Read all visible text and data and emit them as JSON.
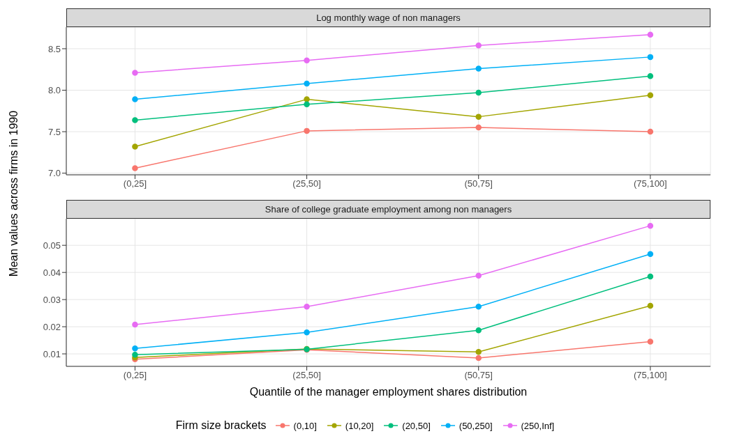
{
  "chart_data": [
    {
      "type": "line",
      "title": "Log monthly wage of non managers",
      "ylabel": "Mean values across firms in 1990",
      "categories": [
        "(0,25]",
        "(25,50]",
        "(50,75]",
        "(75,100]"
      ],
      "ylim": [
        6.98,
        8.76
      ],
      "yticks": [
        {
          "value": 7,
          "label": "7.0"
        },
        7.5,
        {
          "value": 8,
          "label": "8.0"
        },
        8.5
      ],
      "grid": true,
      "marker": "circle",
      "series": [
        {
          "color": "#f8766d",
          "values": [
            7.06,
            7.51,
            7.55,
            7.5
          ]
        },
        {
          "color": "#a3a500",
          "values": [
            7.32,
            7.89,
            7.68,
            7.94
          ]
        },
        {
          "color": "#00bf7d",
          "values": [
            7.64,
            7.83,
            7.97,
            8.17
          ]
        },
        {
          "color": "#00b0f6",
          "values": [
            7.89,
            8.08,
            8.26,
            8.4
          ]
        },
        {
          "color": "#e76bf3",
          "values": [
            8.21,
            8.36,
            8.54,
            8.67
          ]
        }
      ]
    },
    {
      "type": "line",
      "title": "Share of college graduate employment among non managers",
      "xlabel": "Quantile of the manager employment shares distribution",
      "legend_title": "Firm size brackets",
      "legend": "bottom",
      "categories": [
        "(0,25]",
        "(25,50]",
        "(50,75]",
        "(75,100]"
      ],
      "ylim": [
        0.0054,
        0.0598
      ],
      "yticks": [
        0.01,
        0.02,
        0.03,
        0.04,
        0.05
      ],
      "grid": true,
      "marker": "circle",
      "series": [
        {
          "name": "(0,10]",
          "color": "#f8766d",
          "values": [
            0.008,
            0.0115,
            0.0085,
            0.0145
          ]
        },
        {
          "name": "(10,20]",
          "color": "#a3a500",
          "values": [
            0.0087,
            0.0118,
            0.0107,
            0.0277
          ]
        },
        {
          "name": "(20,50]",
          "color": "#00bf7d",
          "values": [
            0.0097,
            0.0117,
            0.0187,
            0.0385
          ]
        },
        {
          "name": "(50,250]",
          "color": "#00b0f6",
          "values": [
            0.012,
            0.0179,
            0.0274,
            0.0468
          ]
        },
        {
          "name": "(250,Inf]",
          "color": "#e76bf3",
          "values": [
            0.0208,
            0.0274,
            0.0388,
            0.0572
          ]
        }
      ]
    }
  ]
}
